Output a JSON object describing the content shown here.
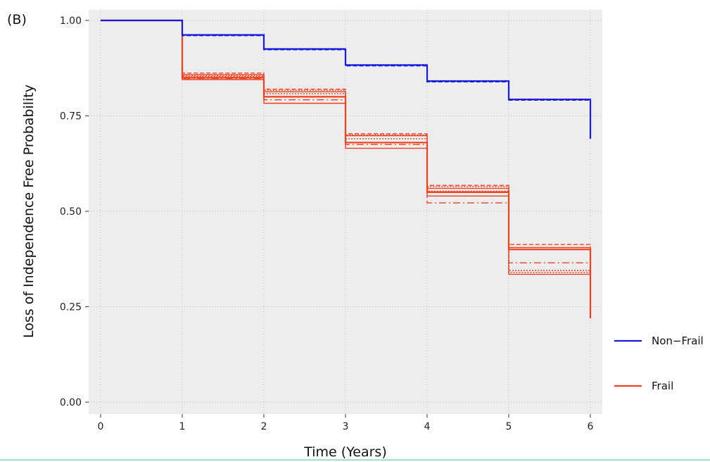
{
  "chart_data": {
    "type": "line",
    "step": true,
    "panel_label": "(B)",
    "title": "",
    "xlabel": "Time (Years)",
    "ylabel": "Loss of Independence Free Probability",
    "xlim": [
      0,
      6
    ],
    "ylim": [
      0,
      1
    ],
    "x_ticks": [
      "0",
      "1",
      "2",
      "3",
      "4",
      "5",
      "6"
    ],
    "y_ticks": [
      "0.00",
      "0.25",
      "0.50",
      "0.75",
      "1.00"
    ],
    "grid": true,
    "legend_position": "right",
    "series": [
      {
        "name": "Non−Frail",
        "color": "#1a1adc",
        "x": [
          0,
          1,
          2,
          3,
          4,
          5,
          6
        ],
        "y": [
          1.0,
          0.962,
          0.925,
          0.883,
          0.841,
          0.793,
          0.69
        ],
        "overlay_paths": [
          {
            "dash": "6,3",
            "y": [
              1.0,
              0.96,
              0.923,
              0.881,
              0.839,
              0.791,
              0.69
            ]
          },
          {
            "dash": "2,2",
            "y": [
              1.0,
              0.963,
              0.926,
              0.884,
              0.842,
              0.794,
              0.69
            ]
          }
        ]
      },
      {
        "name": "Frail",
        "color": "#ee4020",
        "x": [
          0,
          1,
          2,
          3,
          4,
          5,
          6
        ],
        "y": [
          1.0,
          0.85,
          0.8,
          0.68,
          0.55,
          0.4,
          0.22
        ],
        "overlay_paths": [
          {
            "dash": "",
            "y": [
              1.0,
              0.845,
              0.783,
              0.665,
              0.54,
              0.335,
              0.22
            ]
          },
          {
            "dash": "",
            "y": [
              1.0,
              0.858,
              0.813,
              0.698,
              0.56,
              0.405,
              0.22
            ]
          },
          {
            "dash": "6,3",
            "y": [
              1.0,
              0.862,
              0.82,
              0.703,
              0.568,
              0.413,
              0.22
            ]
          },
          {
            "dash": "2,2",
            "y": [
              1.0,
              0.853,
              0.808,
              0.69,
              0.553,
              0.345,
              0.22
            ]
          },
          {
            "dash": "10,4,2,4",
            "y": [
              1.0,
              0.848,
              0.792,
              0.675,
              0.522,
              0.365,
              0.22
            ]
          },
          {
            "dash": "2,2",
            "y": [
              1.0,
              0.855,
              0.817,
              0.7,
              0.565,
              0.34,
              0.22
            ]
          }
        ]
      }
    ]
  }
}
